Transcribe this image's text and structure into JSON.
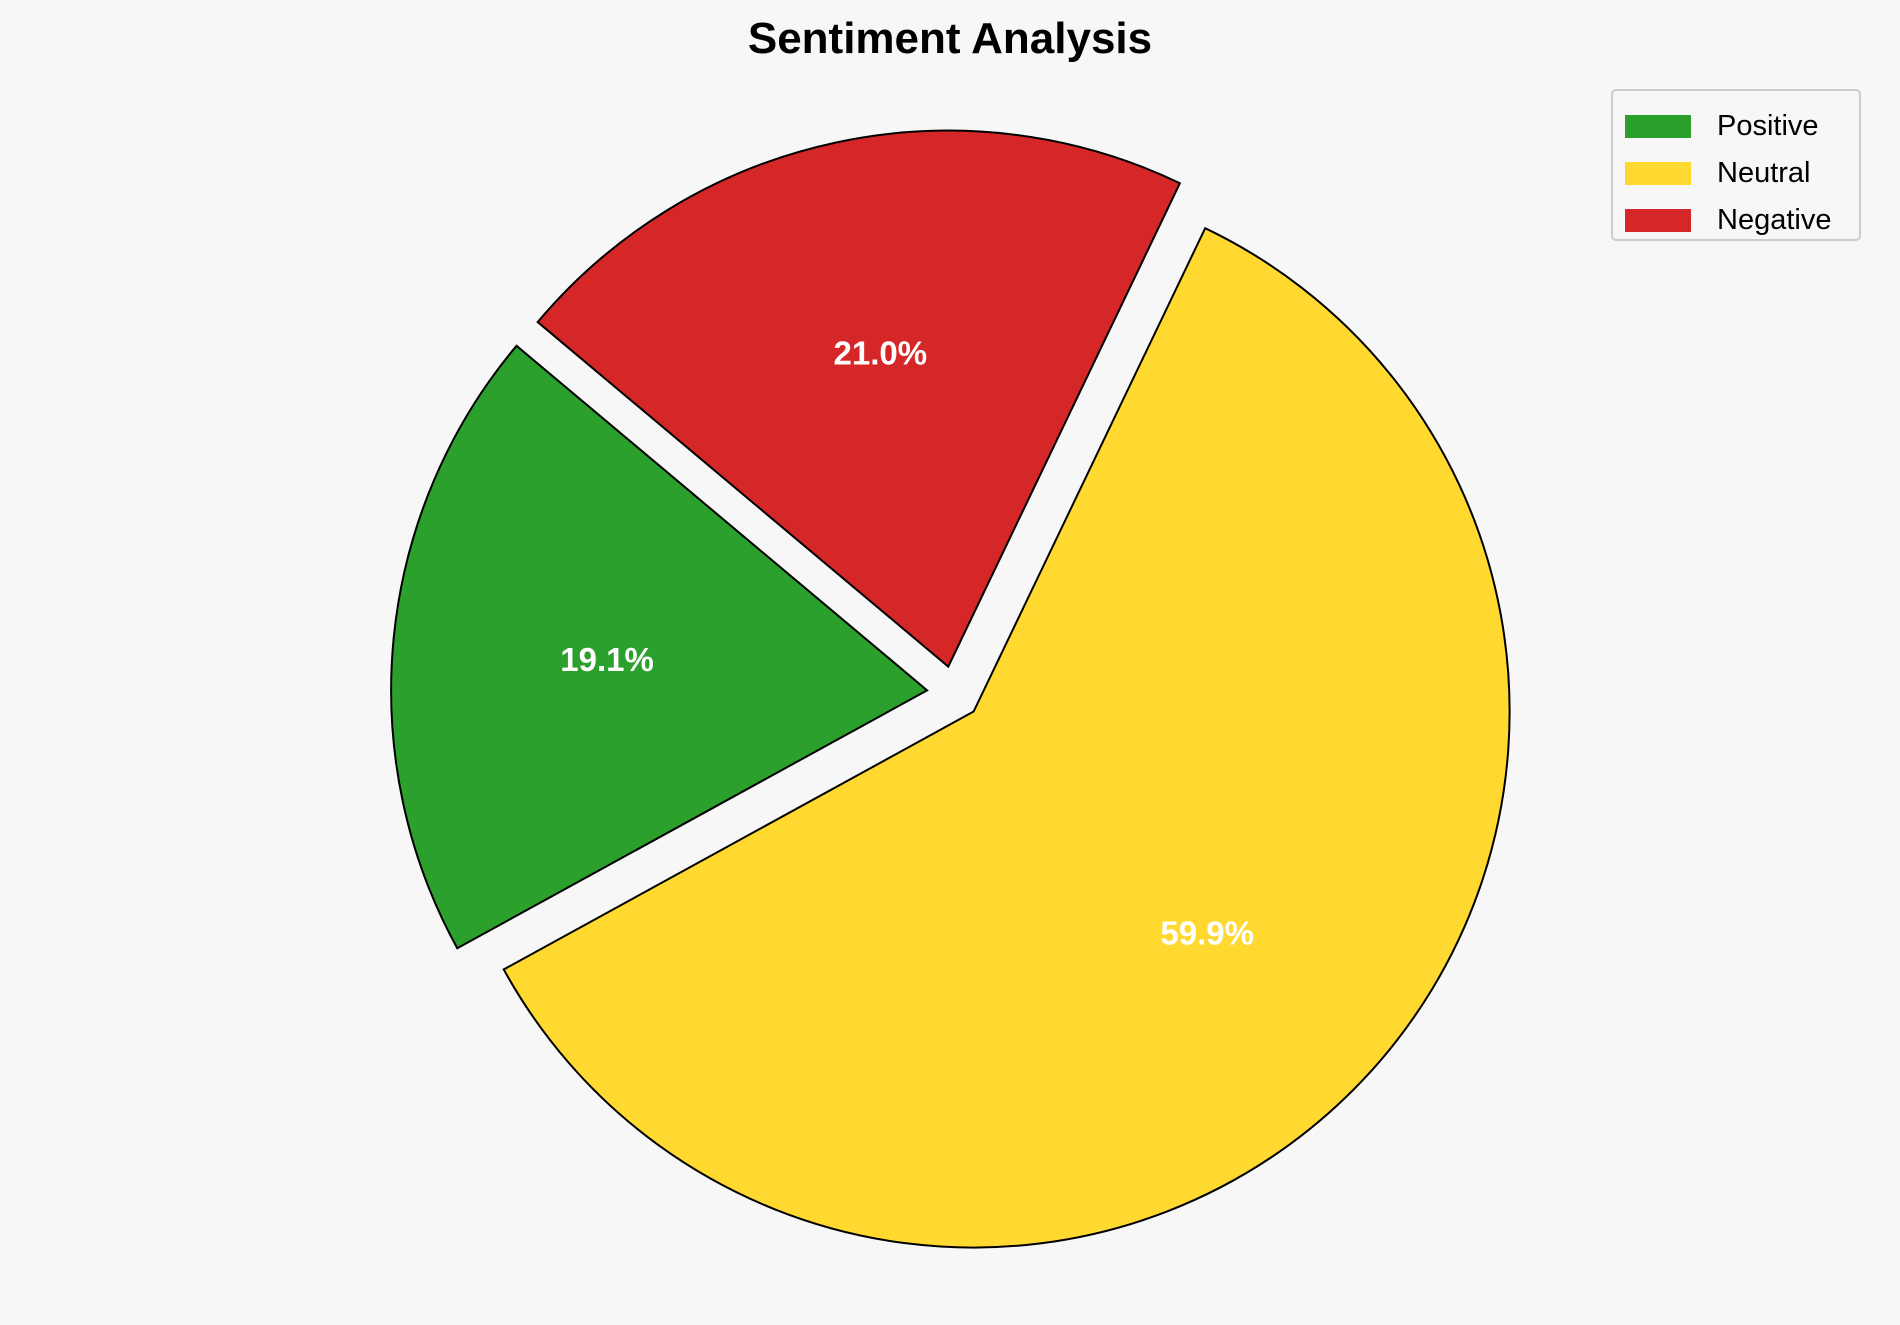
{
  "chart_data": {
    "type": "pie",
    "title": "Sentiment Analysis",
    "categories": [
      "Positive",
      "Neutral",
      "Negative"
    ],
    "values": [
      19.1,
      59.9,
      21.0
    ],
    "labels": [
      "19.1%",
      "59.9%",
      "21.0%"
    ],
    "colors": [
      "#2ca02c",
      "#ffd92f",
      "#d62728"
    ],
    "start_angle": 140,
    "direction": "counterclockwise",
    "exploded": true,
    "edge_color": "#000000",
    "legend_position": "top-right"
  }
}
